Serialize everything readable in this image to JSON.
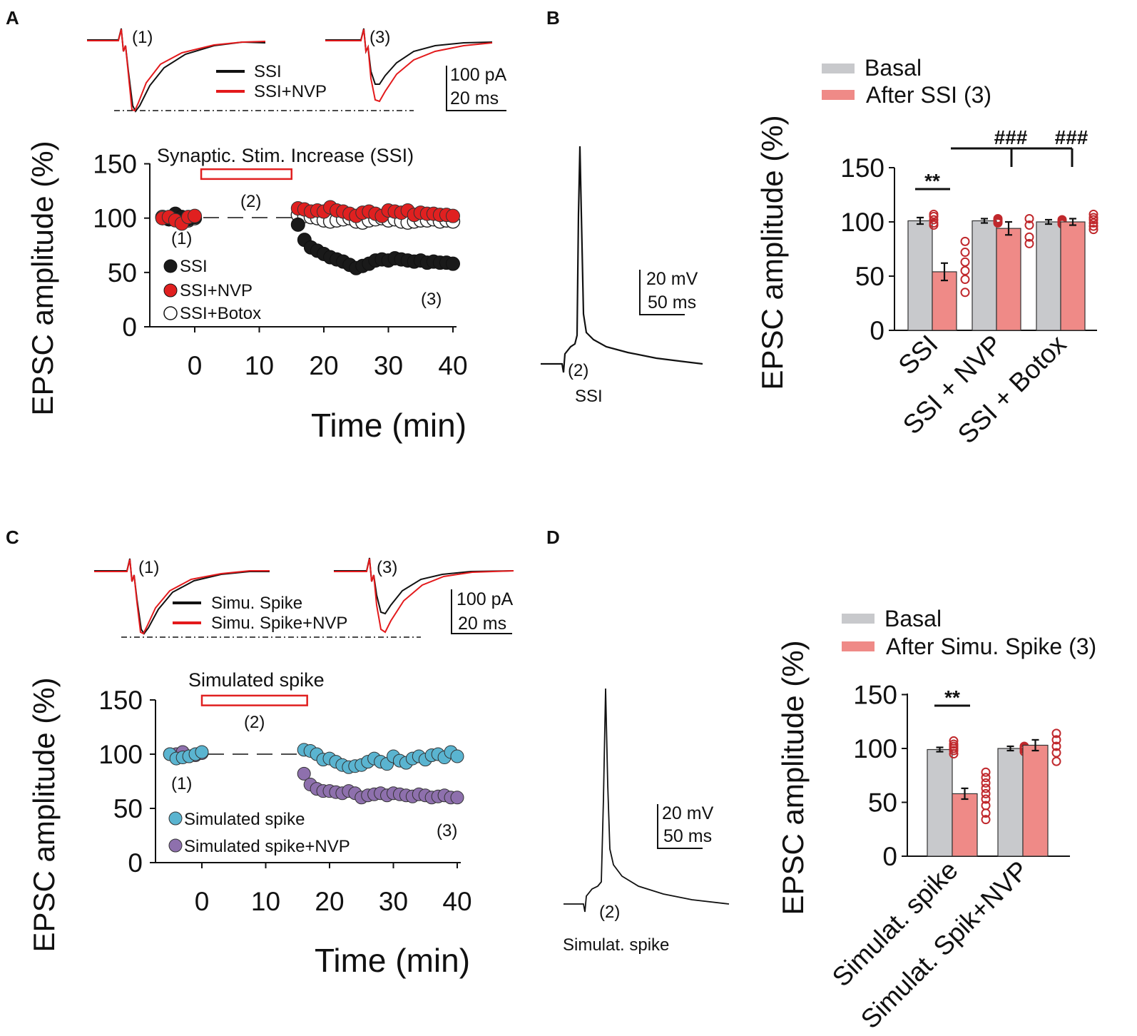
{
  "panels": {
    "A": {
      "letter": "A",
      "trace_labels": [
        "(1)",
        "(3)"
      ],
      "trace_legend": [
        "SSI",
        "SSI+NVP"
      ],
      "scale_bar": [
        "100 pA",
        "20 ms"
      ],
      "stim_label": "Synaptic. Stim. Increase (SSI)",
      "phase_labels": [
        "(1)",
        "(2)",
        "(3)"
      ],
      "ylabel": "EPSC amplitude (%)",
      "xlabel": "Time (min)",
      "yticks": [
        "0",
        "50",
        "100",
        "150"
      ],
      "xticks": [
        "0",
        "10",
        "20",
        "30",
        "40"
      ],
      "legend": [
        "SSI",
        "SSI+NVP",
        "SSI+Botox"
      ]
    },
    "B": {
      "letter": "B",
      "trace_label": "(2)",
      "trace_caption": "SSI",
      "scale_bar": [
        "20 mV",
        "50 ms"
      ],
      "legend": [
        "Basal",
        "After SSI (3)"
      ],
      "ylabel": "EPSC amplitude (%)",
      "yticks": [
        "0",
        "50",
        "100",
        "150"
      ],
      "categories": [
        "SSI",
        "SSI + NVP",
        "SSI + Botox"
      ],
      "sig": [
        "**",
        "###",
        "###"
      ]
    },
    "C": {
      "letter": "C",
      "trace_labels": [
        "(1)",
        "(3)"
      ],
      "trace_legend": [
        "Simu. Spike",
        "Simu. Spike+NVP"
      ],
      "scale_bar": [
        "100 pA",
        "20 ms"
      ],
      "stim_label": "Simulated spike",
      "phase_labels": [
        "(1)",
        "(2)",
        "(3)"
      ],
      "ylabel": "EPSC amplitude (%)",
      "xlabel": "Time (min)",
      "yticks": [
        "0",
        "50",
        "100",
        "150"
      ],
      "xticks": [
        "0",
        "10",
        "20",
        "30",
        "40"
      ],
      "legend": [
        "Simulated spike",
        "Simulated spike+NVP"
      ]
    },
    "D": {
      "letter": "D",
      "trace_label": "(2)",
      "trace_caption": "Simulat. spike",
      "scale_bar": [
        "20 mV",
        "50 ms"
      ],
      "legend": [
        "Basal",
        "After Simu. Spike (3)"
      ],
      "ylabel": "EPSC amplitude (%)",
      "yticks": [
        "0",
        "50",
        "100",
        "150"
      ],
      "categories": [
        "Simulat. spike",
        "Simulat. Spik+NVP"
      ],
      "sig": [
        "**"
      ]
    }
  },
  "colors": {
    "black": "#111111",
    "red": "#e31a1c",
    "red_marker": "#e02020",
    "basal_bar": "#c8c9cc",
    "after_bar": "#ef8a87",
    "dot_outline": "#c0282c",
    "blue": "#5ab4d0",
    "purple": "#8e70ad",
    "stim_box": "#e02020"
  },
  "chart_data": [
    {
      "panel": "A",
      "type": "scatter",
      "title": "",
      "xlabel": "Time (min)",
      "ylabel": "EPSC amplitude (%)",
      "xlim": [
        -6,
        40
      ],
      "ylim": [
        0,
        150
      ],
      "stimulus_window": [
        1,
        15
      ],
      "series": [
        {
          "name": "SSI",
          "x": [
            -5,
            -4,
            -3,
            -2,
            -1,
            0,
            16,
            17,
            18,
            19,
            20,
            21,
            22,
            23,
            24,
            25,
            26,
            27,
            28,
            29,
            30,
            31,
            32,
            33,
            34,
            35,
            36,
            37,
            38,
            39,
            40
          ],
          "y": [
            100,
            99,
            104,
            101,
            99,
            101,
            94,
            80,
            73,
            70,
            67,
            64,
            62,
            60,
            57,
            54,
            56,
            58,
            61,
            62,
            61,
            63,
            62,
            61,
            60,
            61,
            59,
            60,
            59,
            59,
            58
          ]
        },
        {
          "name": "SSI+NVP",
          "x": [
            -5,
            -4,
            -3,
            -2,
            -1,
            0,
            16,
            17,
            18,
            19,
            20,
            21,
            22,
            23,
            24,
            25,
            26,
            27,
            28,
            29,
            30,
            31,
            32,
            33,
            34,
            35,
            36,
            37,
            38,
            39,
            40
          ],
          "y": [
            100,
            101,
            98,
            95,
            101,
            102,
            109,
            108,
            106,
            107,
            106,
            110,
            107,
            106,
            104,
            102,
            105,
            106,
            104,
            102,
            107,
            106,
            105,
            107,
            103,
            105,
            104,
            104,
            103,
            103,
            102
          ]
        },
        {
          "name": "SSI+Botox",
          "x": [
            -5,
            -4,
            -3,
            -2,
            -1,
            0,
            16,
            17,
            18,
            19,
            20,
            21,
            22,
            23,
            24,
            25,
            26,
            27,
            28,
            29,
            30,
            31,
            32,
            33,
            34,
            35,
            36,
            37,
            38,
            39,
            40
          ],
          "y": [
            101,
            99,
            102,
            100,
            98,
            100,
            103,
            102,
            101,
            100,
            98,
            97,
            98,
            99,
            100,
            97,
            96,
            98,
            99,
            100,
            98,
            99,
            97,
            96,
            97,
            98,
            98,
            99,
            97,
            98,
            97
          ]
        }
      ]
    },
    {
      "panel": "B",
      "type": "bar",
      "ylabel": "EPSC amplitude (%)",
      "ylim": [
        0,
        150
      ],
      "categories": [
        "SSI",
        "SSI + NVP",
        "SSI + Botox"
      ],
      "series": [
        {
          "name": "Basal",
          "values": [
            101,
            101,
            100
          ],
          "sem": [
            3,
            2,
            2
          ],
          "points": [
            [
              97,
              99,
              102,
              105,
              107
            ],
            [
              99,
              100,
              101,
              102,
              103
            ],
            [
              98,
              99,
              100,
              101,
              102
            ]
          ]
        },
        {
          "name": "After SSI (3)",
          "values": [
            54,
            94,
            100
          ],
          "sem": [
            8,
            6,
            3
          ],
          "points": [
            [
              35,
              47,
              55,
              63,
              72,
              82
            ],
            [
              80,
              86,
              97,
              103
            ],
            [
              93,
              96,
              99,
              102,
              104,
              107
            ]
          ]
        }
      ],
      "significance": [
        {
          "label": "**",
          "compare": "SSI basal vs after"
        },
        {
          "label": "###",
          "compare": "SSI vs SSI + NVP"
        },
        {
          "label": "###",
          "compare": "SSI vs SSI + Botox"
        }
      ]
    },
    {
      "panel": "C",
      "type": "scatter",
      "title": "",
      "xlabel": "Time (min)",
      "ylabel": "EPSC amplitude (%)",
      "xlim": [
        -6,
        40
      ],
      "ylim": [
        0,
        150
      ],
      "stimulus_window": [
        0,
        16.5
      ],
      "series": [
        {
          "name": "Simulated spike",
          "x": [
            -5,
            -4,
            -3,
            -2,
            -1,
            0,
            16,
            17,
            18,
            19,
            20,
            21,
            22,
            23,
            24,
            25,
            26,
            27,
            28,
            29,
            30,
            31,
            32,
            33,
            34,
            35,
            36,
            37,
            38,
            39,
            40
          ],
          "y": [
            100,
            96,
            97,
            98,
            100,
            102,
            104,
            103,
            100,
            95,
            96,
            93,
            90,
            88,
            89,
            90,
            93,
            96,
            93,
            91,
            98,
            94,
            92,
            96,
            98,
            95,
            99,
            100,
            97,
            102,
            98
          ]
        },
        {
          "name": "Simulated spike+NVP",
          "x": [
            -5,
            -4,
            -3,
            -2,
            -1,
            0,
            16,
            17,
            18,
            19,
            20,
            21,
            22,
            23,
            24,
            25,
            26,
            27,
            28,
            29,
            30,
            31,
            32,
            33,
            34,
            35,
            36,
            37,
            38,
            39,
            40
          ],
          "y": [
            100,
            100,
            102,
            98,
            99,
            101,
            82,
            72,
            68,
            66,
            66,
            65,
            64,
            66,
            64,
            60,
            62,
            63,
            64,
            62,
            64,
            63,
            62,
            61,
            63,
            62,
            60,
            61,
            62,
            60,
            60
          ]
        }
      ]
    },
    {
      "panel": "D",
      "type": "bar",
      "ylabel": "EPSC amplitude (%)",
      "ylim": [
        0,
        150
      ],
      "categories": [
        "Simulat. spike",
        "Simulat. Spik+NVP"
      ],
      "series": [
        {
          "name": "Basal",
          "values": [
            99,
            100
          ],
          "sem": [
            2,
            2
          ],
          "points": [
            [
              95,
              98,
              100,
              102,
              104,
              107
            ],
            [
              97,
              99,
              100,
              101,
              102
            ]
          ]
        },
        {
          "name": "After Simu. Spike (3)",
          "values": [
            58,
            103
          ],
          "sem": [
            5,
            5
          ],
          "points": [
            [
              34,
              40,
              47,
              53,
              58,
              63,
              68,
              73,
              78
            ],
            [
              88,
              96,
              102,
              108,
              114
            ]
          ]
        }
      ],
      "significance": [
        {
          "label": "**",
          "compare": "Simulat. spike basal vs after"
        }
      ]
    }
  ]
}
